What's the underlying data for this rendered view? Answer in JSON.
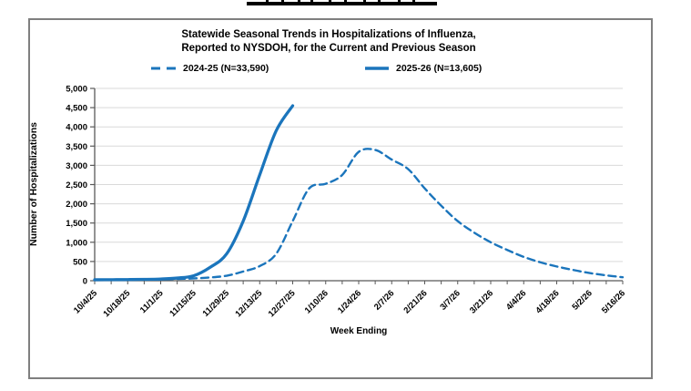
{
  "chart": {
    "title_line1": "Statewide Seasonal Trends in Hospitalizations of Influenza,",
    "title_line2": "Reported to NYSDOH, for the Current and Previous Season",
    "x_axis_title": "Week Ending",
    "y_axis_title": "Number of Hospitalizations",
    "legend": [
      {
        "label": "2024-25 (N=33,590)",
        "style": "dashed"
      },
      {
        "label": "2025-26 (N=13,605)",
        "style": "solid"
      }
    ]
  },
  "colors": {
    "series_blue": "#1B75BC",
    "gridline": "#D9D9D9",
    "axis": "#595959",
    "panel_border": "#7F7F7F",
    "text": "#000000"
  },
  "chart_data": {
    "type": "line",
    "title": "Statewide Seasonal Trends in Hospitalizations of Influenza, Reported to NYSDOH, for the Current and Previous Season",
    "xlabel": "Week Ending",
    "ylabel": "Number of Hospitalizations",
    "ylim": [
      0,
      5000
    ],
    "y_tick_values": [
      0,
      500,
      1000,
      1500,
      2000,
      2500,
      3000,
      3500,
      4000,
      4500,
      5000
    ],
    "y_tick_labels": [
      "0",
      "500",
      "1,000",
      "1,500",
      "2,000",
      "2,500",
      "3,000",
      "3,500",
      "4,000",
      "4,500",
      "5,000"
    ],
    "grid": true,
    "legend_position": "top",
    "x_label_every": 2,
    "categories": [
      "10/4/25",
      "10/11/25",
      "10/18/25",
      "10/25/25",
      "11/1/25",
      "11/8/25",
      "11/15/25",
      "11/22/25",
      "11/29/25",
      "12/6/25",
      "12/13/25",
      "12/20/25",
      "12/27/25",
      "1/3/26",
      "1/10/26",
      "1/17/26",
      "1/24/26",
      "1/31/26",
      "2/7/26",
      "2/14/26",
      "2/21/26",
      "2/28/26",
      "3/7/26",
      "3/14/26",
      "3/21/26",
      "3/28/26",
      "4/4/26",
      "4/11/26",
      "4/18/26",
      "4/25/26",
      "5/2/26",
      "5/9/26",
      "5/16/26"
    ],
    "x_tick_labels": [
      "10/4/25",
      "10/18/25",
      "11/1/25",
      "11/15/25",
      "11/29/25",
      "12/13/25",
      "12/27/25",
      "1/10/26",
      "1/24/26",
      "2/7/26",
      "2/21/26",
      "3/7/26",
      "3/21/26",
      "4/4/26",
      "4/18/26",
      "5/2/26",
      "5/16/26"
    ],
    "series": [
      {
        "name": "2024-25 (N=33,590)",
        "style": "dashed",
        "values": [
          20,
          22,
          25,
          30,
          35,
          45,
          60,
          85,
          130,
          240,
          380,
          700,
          1550,
          2400,
          2520,
          2750,
          3350,
          3400,
          3150,
          2900,
          2400,
          1950,
          1550,
          1250,
          1000,
          800,
          620,
          480,
          370,
          280,
          200,
          140,
          90
        ]
      },
      {
        "name": "2025-26 (N=13,605)",
        "style": "solid",
        "values": [
          25,
          27,
          30,
          35,
          45,
          70,
          130,
          350,
          700,
          1550,
          2750,
          3900,
          4550
        ]
      }
    ]
  }
}
